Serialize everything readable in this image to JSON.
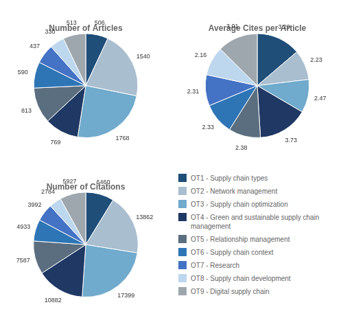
{
  "chart_data": [
    {
      "type": "pie",
      "title": "Number of Articles",
      "categories": [
        "OT1 - Supply chain types",
        "OT2 - Network management",
        "OT3 - Supply chain optimization",
        "OT4 - Green and sustainable supply chain management",
        "OT5 - Relationship management",
        "OT6 - Supply chain context",
        "OT7 - Research",
        "OT8 - Supply chain development",
        "OT9 - Digital supply chain"
      ],
      "values": [
        506,
        1540,
        1768,
        769,
        813,
        590,
        437,
        330,
        513
      ],
      "colors": [
        "#1F4E79",
        "#A9BECF",
        "#70AACC",
        "#1F3864",
        "#5A6E7F",
        "#2E75B6",
        "#4472C4",
        "#BDD7EE",
        "#9EA7AD"
      ],
      "data_labels": true
    },
    {
      "type": "pie",
      "title": "Average Cites per Article",
      "categories": [
        "OT1 - Supply chain types",
        "OT2 - Network management",
        "OT3 - Supply chain optimization",
        "OT4 - Green and sustainable supply chain management",
        "OT5 - Relationship management",
        "OT6 - Supply chain context",
        "OT7 - Research",
        "OT8 - Supply chain development",
        "OT9 - Digital supply chain"
      ],
      "values": [
        3.29,
        2.23,
        2.47,
        3.73,
        2.38,
        2.33,
        2.31,
        2.16,
        3.01
      ],
      "colors": [
        "#1F4E79",
        "#A9BECF",
        "#70AACC",
        "#1F3864",
        "#5A6E7F",
        "#2E75B6",
        "#4472C4",
        "#BDD7EE",
        "#9EA7AD"
      ],
      "data_labels": true
    },
    {
      "type": "pie",
      "title": "Number of Citations",
      "categories": [
        "OT1 - Supply chain types",
        "OT2 - Network management",
        "OT3 - Supply chain optimization",
        "OT4 - Green and sustainable supply chain management",
        "OT5 - Relationship management",
        "OT6 - Supply chain context",
        "OT7 - Research",
        "OT8 - Supply chain development",
        "OT9 - Digital supply chain"
      ],
      "values": [
        6460,
        13862,
        17399,
        10882,
        7587,
        4933,
        3992,
        2784,
        5927
      ],
      "colors": [
        "#1F4E79",
        "#A9BECF",
        "#70AACC",
        "#1F3864",
        "#5A6E7F",
        "#2E75B6",
        "#4472C4",
        "#BDD7EE",
        "#9EA7AD"
      ],
      "data_labels": true
    }
  ]
}
